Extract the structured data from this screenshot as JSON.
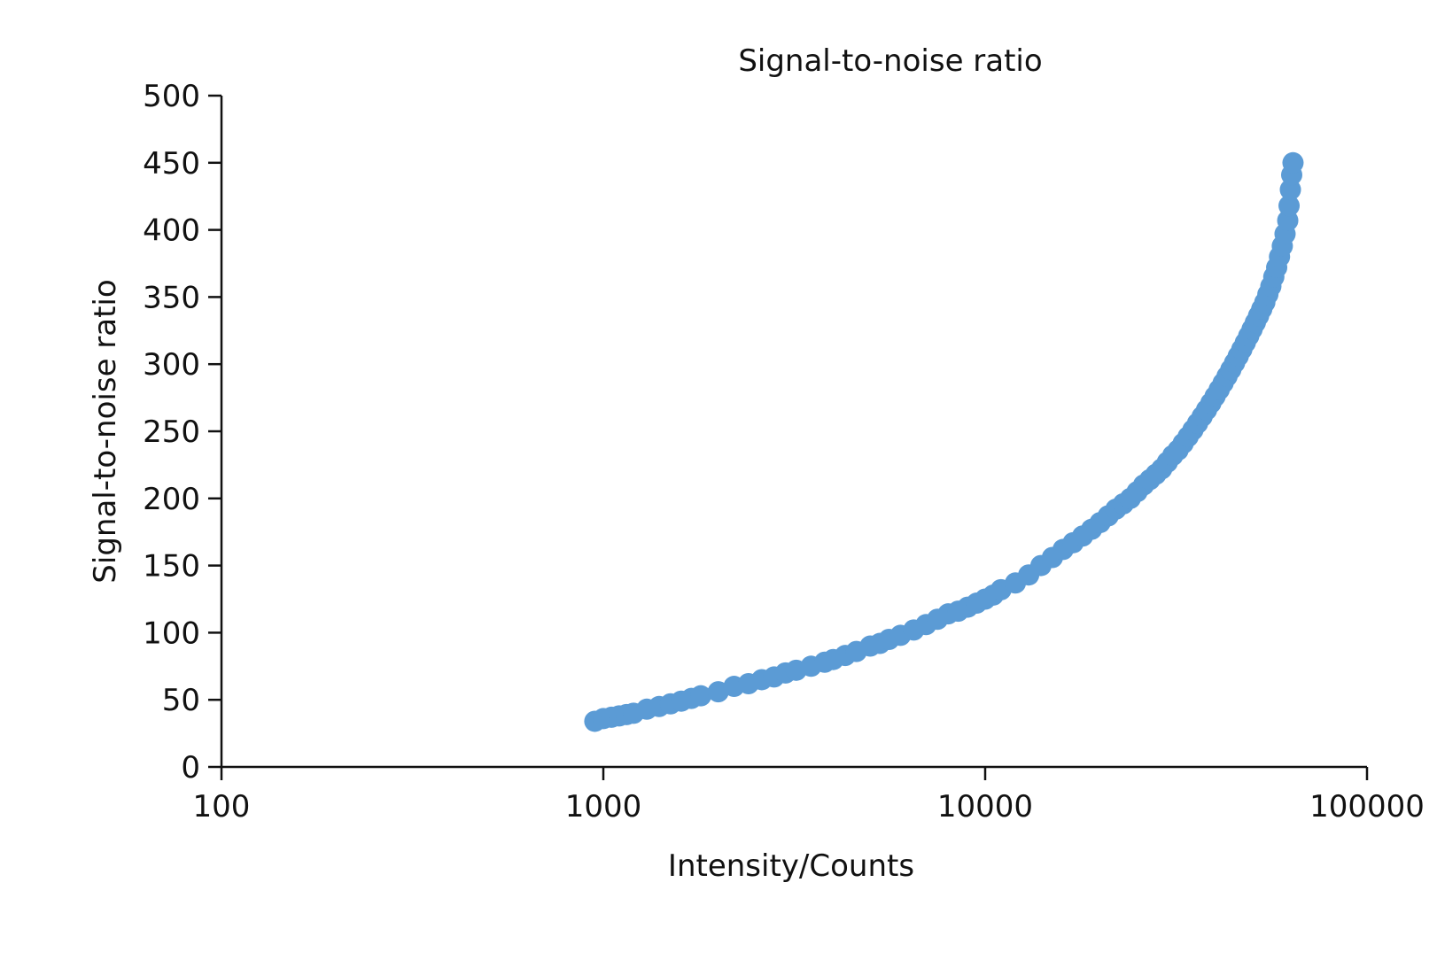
{
  "chart_data": {
    "type": "scatter",
    "title": "Signal-to-noise ratio",
    "xlabel": "Intensity/Counts",
    "ylabel": "Signal-to-noise ratio",
    "xscale": "log",
    "xlim": [
      100,
      100000
    ],
    "ylim": [
      0,
      500
    ],
    "x_ticks": [
      100,
      1000,
      10000,
      100000
    ],
    "x_tick_labels": [
      "100",
      "1000",
      "10000",
      "100000"
    ],
    "y_ticks": [
      0,
      50,
      100,
      150,
      200,
      250,
      300,
      350,
      400,
      450,
      500
    ],
    "y_tick_labels": [
      "0",
      "50",
      "100",
      "150",
      "200",
      "250",
      "300",
      "350",
      "400",
      "450",
      "500"
    ],
    "grid": false,
    "legend": "none",
    "marker_color": "#5b9bd5",
    "series": [
      {
        "x": [
          950,
          1000,
          1050,
          1100,
          1150,
          1200,
          1300,
          1400,
          1500,
          1600,
          1700,
          1800,
          2000,
          2200,
          2400,
          2600,
          2800,
          3000,
          3200,
          3500,
          3800,
          4000,
          4300,
          4600,
          5000,
          5300,
          5600,
          6000,
          6500,
          7000,
          7500,
          8000,
          8500,
          9000,
          9500,
          10000,
          10500,
          11000,
          12000,
          13000,
          14000,
          15000,
          16000,
          17000,
          18000,
          19000,
          20000,
          21000,
          22000,
          23000,
          24000,
          25000,
          26000,
          27000,
          28000,
          29000,
          30000,
          31000,
          32000,
          33000,
          34000,
          35000,
          36000,
          37000,
          38000,
          39000,
          40000,
          41000,
          42000,
          43000,
          44000,
          45000,
          46000,
          47000,
          48000,
          49000,
          50000,
          51000,
          52000,
          53000,
          54000,
          55000,
          56000,
          57000,
          58000,
          59000,
          60000,
          61000,
          62000,
          62500,
          63000,
          63500,
          64000
        ],
        "y": [
          34,
          36,
          37,
          38,
          39,
          40,
          43,
          45,
          47,
          49,
          51,
          53,
          56,
          60,
          62,
          65,
          67,
          70,
          72,
          75,
          78,
          80,
          83,
          86,
          90,
          92,
          95,
          98,
          102,
          106,
          110,
          114,
          116,
          119,
          122,
          125,
          128,
          132,
          137,
          143,
          150,
          156,
          162,
          167,
          172,
          177,
          182,
          187,
          192,
          196,
          200,
          205,
          210,
          214,
          218,
          222,
          227,
          232,
          236,
          241,
          246,
          251,
          256,
          261,
          266,
          271,
          276,
          281,
          286,
          291,
          296,
          301,
          306,
          311,
          316,
          321,
          326,
          331,
          336,
          341,
          346,
          352,
          358,
          365,
          372,
          380,
          388,
          397,
          407,
          418,
          430,
          441,
          450
        ]
      }
    ]
  }
}
